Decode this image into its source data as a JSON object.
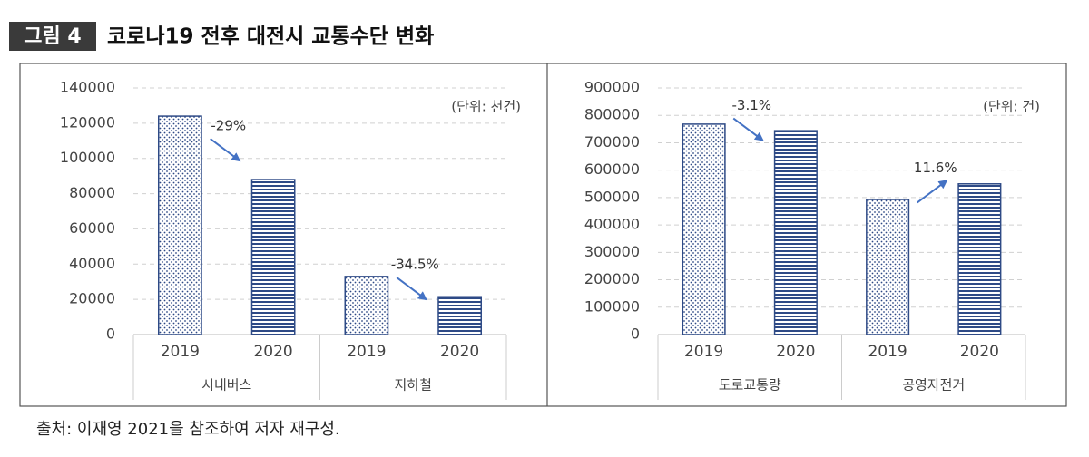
{
  "figure_label": "그림 4",
  "title": "코로나19 전후 대전시 교통수단 변화",
  "source": "출처: 이재영 2021을 참조하여 저자 재구성.",
  "chart_data": [
    {
      "type": "bar",
      "unit_note": "(단위: 천건)",
      "categories": [
        "2019",
        "2020",
        "2019",
        "2020"
      ],
      "groups": [
        "시내버스",
        "지하철"
      ],
      "group_annotations": [
        "-29%",
        "-34.5%"
      ],
      "values": [
        124000,
        88000,
        33000,
        21500
      ],
      "ylim": [
        0,
        140000
      ],
      "yticks": [
        0,
        20000,
        40000,
        60000,
        80000,
        100000,
        120000,
        140000
      ],
      "grid": true,
      "color": "#2e4a86",
      "arrow_color": "#4472c4"
    },
    {
      "type": "bar",
      "unit_note": "(단위: 건)",
      "categories": [
        "2019",
        "2020",
        "2019",
        "2020"
      ],
      "groups": [
        "도로교통량",
        "공영자전거"
      ],
      "group_annotations": [
        "-3.1%",
        "11.6%"
      ],
      "values": [
        768000,
        744000,
        493000,
        550000
      ],
      "ylim": [
        0,
        900000
      ],
      "yticks": [
        0,
        100000,
        200000,
        300000,
        400000,
        500000,
        600000,
        700000,
        800000,
        900000
      ],
      "grid": true,
      "color": "#2e4a86",
      "arrow_color": "#4472c4"
    }
  ]
}
